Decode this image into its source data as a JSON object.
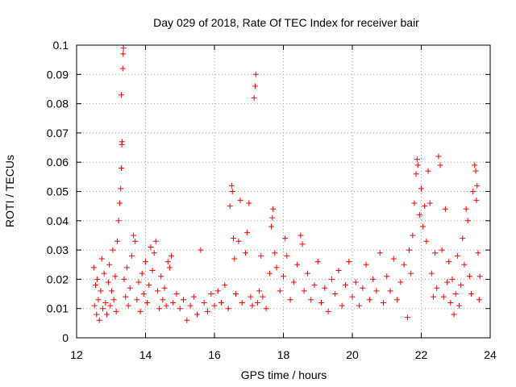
{
  "chart_data": {
    "type": "scatter",
    "title": "Day 029 of 2018, Rate Of TEC Index for receiver bair",
    "xlabel": "GPS time / hours",
    "ylabel": "ROTI / TECUs",
    "xlim": [
      12,
      24
    ],
    "ylim": [
      0,
      0.1
    ],
    "xticks": [
      12,
      14,
      16,
      18,
      20,
      22,
      24
    ],
    "xtick_labels": [
      "12",
      "14",
      "16",
      "18",
      "20",
      "22",
      "24"
    ],
    "yticks": [
      0,
      0.01,
      0.02,
      0.03,
      0.04,
      0.05,
      0.06,
      0.07,
      0.08,
      0.09,
      0.1
    ],
    "ytick_labels": [
      "0",
      "0.01",
      "0.02",
      "0.03",
      "0.04",
      "0.05",
      "0.06",
      "0.07",
      "0.08",
      "0.09",
      "0.1"
    ],
    "grid": true,
    "marker": "plus",
    "color": "#ff0000",
    "series": [
      {
        "points": [
          [
            12.5,
            0.024
          ],
          [
            12.52,
            0.011
          ],
          [
            12.55,
            0.018
          ],
          [
            12.58,
            0.008
          ],
          [
            12.6,
            0.02
          ],
          [
            12.63,
            0.013
          ],
          [
            12.66,
            0.006
          ],
          [
            12.7,
            0.016
          ],
          [
            12.73,
            0.027
          ],
          [
            12.76,
            0.01
          ],
          [
            12.8,
            0.022
          ],
          [
            12.84,
            0.012
          ],
          [
            12.88,
            0.008
          ],
          [
            12.92,
            0.019
          ],
          [
            12.95,
            0.025
          ],
          [
            12.98,
            0.011
          ],
          [
            13.02,
            0.016
          ],
          [
            13.05,
            0.03
          ],
          [
            13.08,
            0.013
          ],
          [
            13.12,
            0.021
          ],
          [
            13.15,
            0.009
          ],
          [
            13.18,
            0.033
          ],
          [
            13.22,
            0.04
          ],
          [
            13.25,
            0.046
          ],
          [
            13.28,
            0.051
          ],
          [
            13.3,
            0.058
          ],
          [
            13.31,
            0.066
          ],
          [
            13.32,
            0.067
          ],
          [
            13.3,
            0.083
          ],
          [
            13.34,
            0.092
          ],
          [
            13.35,
            0.097
          ],
          [
            13.36,
            0.099
          ],
          [
            13.38,
            0.02
          ],
          [
            13.42,
            0.014
          ],
          [
            13.46,
            0.024
          ],
          [
            13.5,
            0.011
          ],
          [
            13.55,
            0.017
          ],
          [
            13.6,
            0.028
          ],
          [
            13.65,
            0.035
          ],
          [
            13.7,
            0.033
          ],
          [
            13.75,
            0.013
          ],
          [
            13.8,
            0.019
          ],
          [
            13.85,
            0.009
          ],
          [
            13.9,
            0.022
          ],
          [
            13.95,
            0.015
          ],
          [
            14.0,
            0.026
          ],
          [
            14.05,
            0.012
          ],
          [
            14.1,
            0.018
          ],
          [
            14.15,
            0.031
          ],
          [
            14.2,
            0.023
          ],
          [
            14.25,
            0.029
          ],
          [
            14.3,
            0.033
          ],
          [
            14.35,
            0.016
          ],
          [
            14.4,
            0.01
          ],
          [
            14.45,
            0.021
          ],
          [
            14.5,
            0.013
          ],
          [
            14.55,
            0.017
          ],
          [
            14.6,
            0.011
          ],
          [
            14.65,
            0.026
          ],
          [
            14.7,
            0.024
          ],
          [
            14.75,
            0.028
          ],
          [
            14.8,
            0.012
          ],
          [
            14.9,
            0.015
          ],
          [
            15.0,
            0.01
          ],
          [
            15.1,
            0.013
          ],
          [
            15.2,
            0.006
          ],
          [
            15.3,
            0.011
          ],
          [
            15.4,
            0.014
          ],
          [
            15.5,
            0.008
          ],
          [
            15.6,
            0.03
          ],
          [
            15.7,
            0.012
          ],
          [
            15.8,
            0.009
          ],
          [
            15.9,
            0.015
          ],
          [
            16.0,
            0.011
          ],
          [
            16.1,
            0.016
          ],
          [
            16.2,
            0.012
          ],
          [
            16.3,
            0.018
          ],
          [
            16.4,
            0.01
          ],
          [
            16.45,
            0.045
          ],
          [
            16.5,
            0.052
          ],
          [
            16.52,
            0.05
          ],
          [
            16.55,
            0.034
          ],
          [
            16.58,
            0.027
          ],
          [
            16.62,
            0.015
          ],
          [
            16.7,
            0.033
          ],
          [
            16.75,
            0.047
          ],
          [
            16.8,
            0.012
          ],
          [
            16.9,
            0.029
          ],
          [
            16.95,
            0.036
          ],
          [
            17.0,
            0.046
          ],
          [
            17.05,
            0.014
          ],
          [
            17.1,
            0.011
          ],
          [
            17.15,
            0.082
          ],
          [
            17.18,
            0.086
          ],
          [
            17.2,
            0.09
          ],
          [
            17.25,
            0.012
          ],
          [
            17.3,
            0.016
          ],
          [
            17.35,
            0.028
          ],
          [
            17.4,
            0.014
          ],
          [
            17.5,
            0.01
          ],
          [
            17.6,
            0.022
          ],
          [
            17.65,
            0.038
          ],
          [
            17.68,
            0.041
          ],
          [
            17.7,
            0.044
          ],
          [
            17.75,
            0.029
          ],
          [
            17.8,
            0.024
          ],
          [
            17.9,
            0.016
          ],
          [
            18.0,
            0.021
          ],
          [
            18.05,
            0.034
          ],
          [
            18.1,
            0.028
          ],
          [
            18.2,
            0.013
          ],
          [
            18.3,
            0.019
          ],
          [
            18.4,
            0.025
          ],
          [
            18.5,
            0.035
          ],
          [
            18.55,
            0.032
          ],
          [
            18.6,
            0.016
          ],
          [
            18.7,
            0.022
          ],
          [
            18.8,
            0.013
          ],
          [
            18.9,
            0.018
          ],
          [
            19.0,
            0.026
          ],
          [
            19.1,
            0.012
          ],
          [
            19.2,
            0.017
          ],
          [
            19.3,
            0.009
          ],
          [
            19.4,
            0.02
          ],
          [
            19.5,
            0.015
          ],
          [
            19.6,
            0.023
          ],
          [
            19.7,
            0.011
          ],
          [
            19.8,
            0.018
          ],
          [
            19.9,
            0.026
          ],
          [
            20.0,
            0.014
          ],
          [
            20.1,
            0.019
          ],
          [
            20.2,
            0.011
          ],
          [
            20.3,
            0.017
          ],
          [
            20.4,
            0.025
          ],
          [
            20.5,
            0.013
          ],
          [
            20.6,
            0.02
          ],
          [
            20.7,
            0.016
          ],
          [
            20.8,
            0.029
          ],
          [
            20.9,
            0.012
          ],
          [
            21.0,
            0.021
          ],
          [
            21.1,
            0.016
          ],
          [
            21.2,
            0.027
          ],
          [
            21.3,
            0.013
          ],
          [
            21.4,
            0.019
          ],
          [
            21.5,
            0.025
          ],
          [
            21.6,
            0.007
          ],
          [
            21.65,
            0.03
          ],
          [
            21.7,
            0.022
          ],
          [
            21.75,
            0.035
          ],
          [
            21.8,
            0.046
          ],
          [
            21.85,
            0.056
          ],
          [
            21.88,
            0.061
          ],
          [
            21.9,
            0.059
          ],
          [
            21.95,
            0.042
          ],
          [
            22.0,
            0.051
          ],
          [
            22.05,
            0.038
          ],
          [
            22.1,
            0.045
          ],
          [
            22.15,
            0.033
          ],
          [
            22.2,
            0.057
          ],
          [
            22.25,
            0.046
          ],
          [
            22.3,
            0.022
          ],
          [
            22.35,
            0.014
          ],
          [
            22.4,
            0.029
          ],
          [
            22.45,
            0.017
          ],
          [
            22.5,
            0.062
          ],
          [
            22.55,
            0.059
          ],
          [
            22.6,
            0.03
          ],
          [
            22.65,
            0.014
          ],
          [
            22.7,
            0.044
          ],
          [
            22.75,
            0.019
          ],
          [
            22.8,
            0.026
          ],
          [
            22.85,
            0.012
          ],
          [
            22.9,
            0.02
          ],
          [
            22.95,
            0.008
          ],
          [
            23.0,
            0.015
          ],
          [
            23.05,
            0.028
          ],
          [
            23.1,
            0.011
          ],
          [
            23.15,
            0.018
          ],
          [
            23.2,
            0.034
          ],
          [
            23.25,
            0.025
          ],
          [
            23.3,
            0.044
          ],
          [
            23.35,
            0.04
          ],
          [
            23.4,
            0.021
          ],
          [
            23.45,
            0.015
          ],
          [
            23.5,
            0.05
          ],
          [
            23.55,
            0.059
          ],
          [
            23.58,
            0.057
          ],
          [
            23.6,
            0.047
          ],
          [
            23.62,
            0.052
          ],
          [
            23.65,
            0.029
          ],
          [
            23.68,
            0.013
          ],
          [
            23.7,
            0.021
          ]
        ]
      }
    ]
  }
}
